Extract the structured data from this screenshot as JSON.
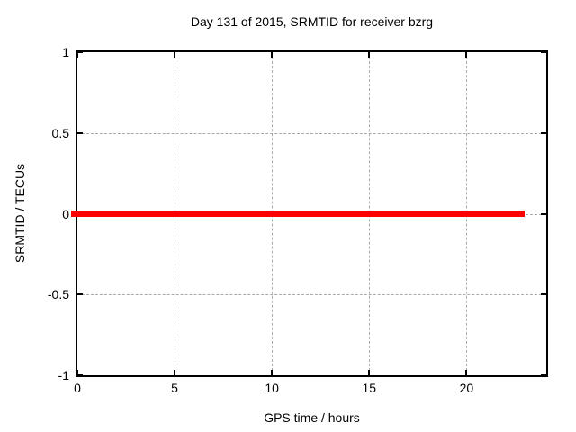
{
  "figure": {
    "background": "#ffffff",
    "text_color": "#000000"
  },
  "chart_data": {
    "type": "line",
    "title": "Day 131 of 2015, SRMTID for receiver bzrg",
    "xlabel": "GPS time / hours",
    "ylabel": "SRMTID / TECUs",
    "xlim": [
      0,
      24.1
    ],
    "ylim": [
      -1,
      1
    ],
    "x_tick_values": [
      0,
      5,
      10,
      15,
      20
    ],
    "x_tick_labels": [
      "0",
      "5",
      "10",
      "15",
      "20"
    ],
    "y_tick_values": [
      -1,
      -0.5,
      0,
      0.5,
      1
    ],
    "y_tick_labels": [
      "-1",
      "-0.5",
      "0",
      "0.5",
      "1"
    ],
    "grid": true,
    "grid_color": "#aaaaaa",
    "axis_color": "#000000",
    "legend": "none",
    "series": [
      {
        "name": "SRMTID",
        "color": "#ff0000",
        "y_constant": 0,
        "points": [
          [
            0,
            0
          ],
          [
            23,
            0
          ]
        ]
      }
    ]
  }
}
